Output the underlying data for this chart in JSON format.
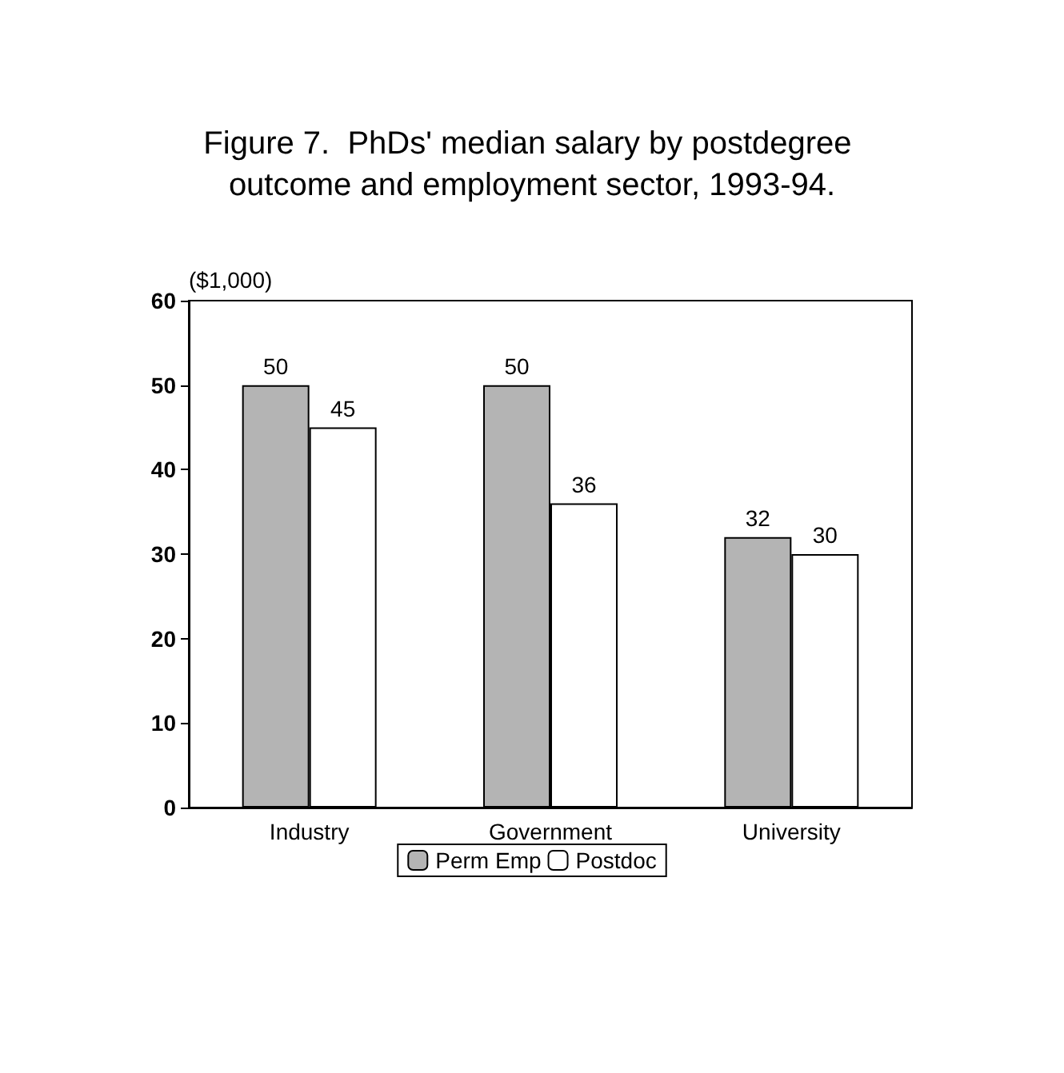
{
  "chart_data": {
    "type": "bar",
    "title": "Figure 7.  PhDs' median salary by postdegree outcome and employment sector, 1993-94.",
    "ylabel": "($1,000)",
    "categories": [
      "Industry",
      "Government",
      "University"
    ],
    "series": [
      {
        "name": "Perm Emp",
        "color": "#b4b4b4",
        "values": [
          50,
          50,
          32
        ]
      },
      {
        "name": "Postdoc",
        "color": "#ffffff",
        "values": [
          45,
          36,
          30
        ]
      }
    ],
    "ylim": [
      0,
      60
    ],
    "yticks": [
      0,
      10,
      20,
      30,
      40,
      50,
      60
    ],
    "grid": false,
    "legend": "bottom",
    "data_labels": true
  }
}
